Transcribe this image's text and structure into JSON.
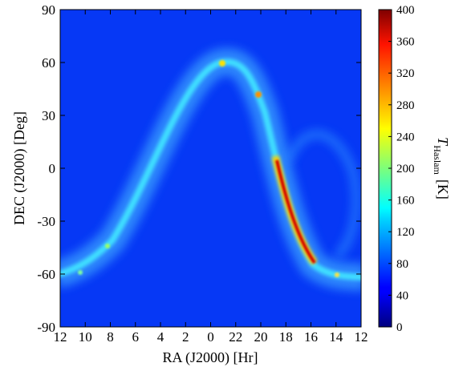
{
  "chart_data": {
    "type": "image",
    "xlabel": "RA (J2000) [Hr]",
    "ylabel": "DEC (J2000) [Deg]",
    "xlim": [
      12,
      -12
    ],
    "xticks": [
      12,
      10,
      8,
      6,
      4,
      2,
      0,
      {
        "value": -2,
        "label": "22"
      },
      {
        "value": -4,
        "label": "20"
      },
      {
        "value": -6,
        "label": "18"
      },
      {
        "value": -8,
        "label": "16"
      },
      {
        "value": -10,
        "label": "14"
      },
      {
        "value": -12,
        "label": "12"
      }
    ],
    "ylim": [
      -90,
      90
    ],
    "yticks": [
      90,
      60,
      30,
      0,
      -30,
      -60,
      -90
    ],
    "colormap": "jet",
    "clim": [
      0,
      400
    ],
    "cticks": [
      0,
      40,
      80,
      120,
      160,
      200,
      240,
      280,
      320,
      360,
      400
    ],
    "colorbar_label": {
      "symbol": "T",
      "subscript": "Haslam",
      "unit": "[K]"
    }
  }
}
